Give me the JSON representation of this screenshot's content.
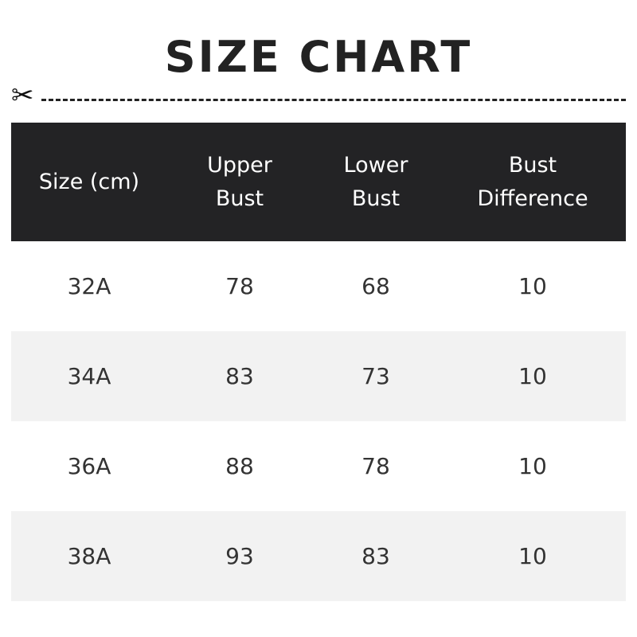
{
  "title": "SIZE CHART",
  "icons": {
    "cut": "scissors-icon"
  },
  "colors": {
    "header_bg": "#232325",
    "alt_row": "#f2f2f2"
  },
  "table": {
    "headers": [
      "Size (cm)",
      "Upper\nBust",
      "Lower\nBust",
      "Bust\nDifference"
    ],
    "rows": [
      [
        "32A",
        "78",
        "68",
        "10"
      ],
      [
        "34A",
        "83",
        "73",
        "10"
      ],
      [
        "36A",
        "88",
        "78",
        "10"
      ],
      [
        "38A",
        "93",
        "83",
        "10"
      ]
    ]
  }
}
